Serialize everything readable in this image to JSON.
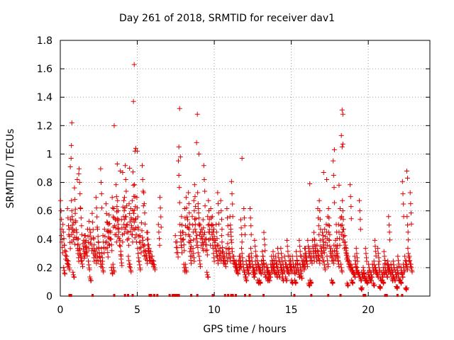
{
  "chart_data": {
    "type": "scatter",
    "title": "Day 261 of 2018, SRMTID for receiver dav1",
    "xlabel": "GPS time / hours",
    "ylabel": "SRMTID / TECUs",
    "xlim": [
      0,
      24
    ],
    "ylim": [
      0,
      1.8
    ],
    "xticks": [
      0,
      5,
      10,
      15,
      20
    ],
    "yticks": [
      0,
      0.2,
      0.4,
      0.6,
      0.8,
      1,
      1.2,
      1.4,
      1.6,
      1.8
    ],
    "ytick_labels": [
      "0",
      "0.2",
      "0.4",
      "0.6",
      "0.8",
      "1",
      "1.2",
      "1.4",
      "1.6",
      "1.8"
    ],
    "grid": true,
    "marker": "+",
    "color": "#e00000",
    "series": [
      {
        "name": "SRMTID",
        "x": [
          0.1,
          0.2,
          0.3,
          0.4,
          0.5,
          0.6,
          0.7,
          0.8,
          0.9,
          1.0,
          1.1,
          1.2,
          1.3,
          1.4,
          1.5,
          1.6,
          1.7,
          1.8,
          1.9,
          2.0,
          2.1,
          2.2,
          2.3,
          2.4,
          2.5,
          2.6,
          2.7,
          2.8,
          2.9,
          3.0,
          3.1,
          3.2,
          3.3,
          3.4,
          3.5,
          3.6,
          3.7,
          3.8,
          3.9,
          4.0,
          4.1,
          4.2,
          4.3,
          4.4,
          4.5,
          4.6,
          4.7,
          4.8,
          4.9,
          5.0,
          5.1,
          5.2,
          5.3,
          5.4,
          5.5,
          5.6,
          5.7,
          5.8,
          5.9,
          6.0,
          6.1,
          6.4,
          6.5,
          7.5,
          7.6,
          7.7,
          7.8,
          7.9,
          8.0,
          8.1,
          8.2,
          8.3,
          8.4,
          8.5,
          8.6,
          8.7,
          8.8,
          8.9,
          9.0,
          9.1,
          9.2,
          9.3,
          9.4,
          9.5,
          9.6,
          9.7,
          9.8,
          9.9,
          10.0,
          10.1,
          10.2,
          10.3,
          10.4,
          10.5,
          10.6,
          10.7,
          10.8,
          10.9,
          11.0,
          11.1,
          11.2,
          11.3,
          11.4,
          11.5,
          11.6,
          11.7,
          11.8,
          11.9,
          12.0,
          12.1,
          12.2,
          12.3,
          12.4,
          12.5,
          12.6,
          12.7,
          12.8,
          12.9,
          13.0,
          13.1,
          13.2,
          13.3,
          13.4,
          13.5,
          13.6,
          13.7,
          13.8,
          13.9,
          14.0,
          14.1,
          14.2,
          14.3,
          14.4,
          14.5,
          14.6,
          14.7,
          14.8,
          14.9,
          15.0,
          15.1,
          15.2,
          15.3,
          15.4,
          15.5,
          15.6,
          15.7,
          15.8,
          15.9,
          16.0,
          16.1,
          16.2,
          16.3,
          16.4,
          16.5,
          16.6,
          16.7,
          16.8,
          16.9,
          17.0,
          17.1,
          17.2,
          17.3,
          17.4,
          17.5,
          17.6,
          17.7,
          17.8,
          17.9,
          18.0,
          18.1,
          18.2,
          18.3,
          18.4,
          18.5,
          18.6,
          18.7,
          18.8,
          18.9,
          19.0,
          19.1,
          19.2,
          19.3,
          19.4,
          19.5,
          19.6,
          19.7,
          19.8,
          19.9,
          20.0,
          20.1,
          20.2,
          20.3,
          20.4,
          20.5,
          20.6,
          20.7,
          20.8,
          20.9,
          21.0,
          21.1,
          21.2,
          21.3,
          21.4,
          21.5,
          21.6,
          21.7,
          21.8,
          21.9,
          22.0,
          22.1,
          22.2,
          22.3,
          22.4,
          22.5,
          22.6,
          22.7,
          22.8,
          0.25,
          0.55,
          0.75,
          0.95,
          1.15,
          1.35,
          1.65,
          1.85,
          2.15,
          2.45,
          2.75,
          3.05,
          3.35,
          3.65,
          3.95,
          4.25,
          4.55,
          4.85,
          5.15,
          5.45,
          5.75,
          7.85,
          8.15,
          8.45,
          8.75,
          9.05,
          9.35,
          9.65,
          9.95,
          10.25,
          10.55,
          10.85,
          11.15,
          11.45,
          11.75,
          12.05,
          12.35,
          12.65,
          12.95,
          13.25,
          13.55,
          13.85,
          14.15,
          14.45,
          14.75,
          15.05,
          15.35,
          15.65,
          15.95,
          16.25,
          16.55,
          16.85,
          17.15,
          17.45,
          17.75,
          18.05,
          18.35,
          18.65,
          18.95,
          19.25,
          19.55,
          19.85,
          20.15,
          20.45,
          20.75,
          21.05,
          21.35,
          21.65,
          21.95,
          22.25,
          22.55,
          0.05,
          0.45,
          0.85,
          1.25,
          1.55,
          1.95,
          2.35,
          2.65,
          3.15,
          3.45,
          3.75,
          4.15,
          4.45,
          4.65,
          4.75,
          5.05,
          5.35,
          5.65,
          8.05,
          8.35,
          8.65,
          8.95,
          9.25,
          9.55,
          9.85,
          10.15,
          10.45,
          11.05,
          11.65,
          11.95,
          12.25,
          12.55,
          12.85,
          13.15,
          13.45,
          13.75,
          14.05,
          14.35,
          14.65,
          14.95,
          15.25,
          15.55,
          15.85,
          16.15,
          16.45,
          16.75,
          17.05,
          17.35,
          17.65,
          17.95,
          18.25,
          18.55,
          18.85,
          19.15,
          19.45,
          19.75,
          20.05,
          20.35,
          20.65,
          20.95,
          21.25,
          21.55,
          21.85,
          22.15,
          22.45,
          22.75
        ],
        "y": [
          0.38,
          0.45,
          0.32,
          0.28,
          0.55,
          0.42,
          0.48,
          0.5,
          0.46,
          0.52,
          0.4,
          0.36,
          0.3,
          0.25,
          0.33,
          0.38,
          0.35,
          0.42,
          0.47,
          0.4,
          0.52,
          0.36,
          0.28,
          0.3,
          0.34,
          0.25,
          0.3,
          0.38,
          0.42,
          0.58,
          0.46,
          0.51,
          0.4,
          0.62,
          0.55,
          0.48,
          0.53,
          0.45,
          0.35,
          0.48,
          0.56,
          0.62,
          0.5,
          0.45,
          0.58,
          0.55,
          0.6,
          0.52,
          0.48,
          0.62,
          0.42,
          0.38,
          0.46,
          0.35,
          0.32,
          0.28,
          0.4,
          0.3,
          0.28,
          0.25,
          0.22,
          0.45,
          0.62,
          0.38,
          0.34,
          0.85,
          0.45,
          0.5,
          0.4,
          0.55,
          0.62,
          0.48,
          0.42,
          0.35,
          0.5,
          0.6,
          0.45,
          0.38,
          0.55,
          0.45,
          0.42,
          0.48,
          0.4,
          0.36,
          0.5,
          0.45,
          0.55,
          0.5,
          0.42,
          0.35,
          0.28,
          0.32,
          0.3,
          0.38,
          0.28,
          0.25,
          0.3,
          0.33,
          0.3,
          0.42,
          0.28,
          0.25,
          0.2,
          0.18,
          0.22,
          0.25,
          0.3,
          0.2,
          0.15,
          0.22,
          0.18,
          0.25,
          0.3,
          0.2,
          0.18,
          0.22,
          0.25,
          0.2,
          0.18,
          0.22,
          0.25,
          0.15,
          0.2,
          0.18,
          0.15,
          0.2,
          0.22,
          0.18,
          0.25,
          0.2,
          0.15,
          0.22,
          0.18,
          0.2,
          0.25,
          0.2,
          0.18,
          0.22,
          0.2,
          0.25,
          0.18,
          0.2,
          0.22,
          0.15,
          0.2,
          0.25,
          0.22,
          0.3,
          0.25,
          0.35,
          0.3,
          0.28,
          0.35,
          0.4,
          0.3,
          0.32,
          0.28,
          0.35,
          0.3,
          0.38,
          0.42,
          0.45,
          0.5,
          0.35,
          0.3,
          0.28,
          0.32,
          0.35,
          0.3,
          0.45,
          0.55,
          0.5,
          0.42,
          0.38,
          0.3,
          0.25,
          0.22,
          0.2,
          0.18,
          0.15,
          0.2,
          0.18,
          0.15,
          0.12,
          0.15,
          0.18,
          0.12,
          0.1,
          0.15,
          0.12,
          0.15,
          0.2,
          0.22,
          0.18,
          0.15,
          0.2,
          0.12,
          0.15,
          0.18,
          0.2,
          0.15,
          0.22,
          0.18,
          0.2,
          0.15,
          0.12,
          0.15,
          0.18,
          0.12,
          0.1,
          0.15,
          0.2,
          0.25,
          0.22,
          0.3,
          0.25,
          0.2,
          0.18,
          0.22,
          0.6,
          0.68,
          0.3,
          0.55,
          0.38,
          0.22,
          0.3,
          0.42,
          0.2,
          0.34,
          0.18,
          0.7,
          0.26,
          0.82,
          0.2,
          0.7,
          0.22,
          0.65,
          0.3,
          0.38,
          0.2,
          0.28,
          0.7,
          0.25,
          0.82,
          0.6,
          0.3,
          0.65,
          0.28,
          0.55,
          0.72,
          0.22,
          0.48,
          0.12,
          0.55,
          0.35,
          0.1,
          0.4,
          0.12,
          0.28,
          0.3,
          0.12,
          0.35,
          0.1,
          0.28,
          0.14,
          0.3,
          0.1,
          0.35,
          0.6,
          0.22,
          0.55,
          0.85,
          0.25,
          0.6,
          0.08,
          0.1,
          0.3,
          0.05,
          0.3,
          0.12,
          0.35,
          0.06,
          0.28,
          0.5,
          0.22,
          0.25,
          0.72,
          0.5,
          0.6,
          0.25,
          0.15,
          0.8,
          0.35,
          0.12,
          0.62,
          0.8,
          0.45,
          0.2,
          0.6,
          0.6,
          0.25,
          0.48,
          0.78,
          0.3,
          0.82,
          0.4,
          0.2,
          0.65,
          0.3,
          0.65,
          0.4,
          0.15,
          0.45,
          0.45,
          0.6,
          0.5,
          0.25,
          0.55,
          0.25,
          0.15,
          0.1,
          0.28,
          0.12,
          0.25,
          0.15,
          0.3,
          0.12,
          0.25,
          0.1,
          0.35,
          0.25,
          0.08,
          0.3,
          0.55,
          0.4,
          0.25,
          0.1,
          0.45,
          0.2,
          0.32,
          0.7,
          0.25,
          0.6,
          0.14,
          0.2,
          0.08,
          0.3,
          0.1,
          0.2,
          0.12,
          0.06,
          0.18,
          0.05,
          0.65
        ]
      }
    ],
    "outliers": {
      "x": [
        0.75,
        0.72,
        0.65,
        1.2,
        3.5,
        4.8,
        4.75,
        4.9,
        4.85,
        7.75,
        7.8,
        7.7,
        8.9,
        9.0,
        8.85,
        11.8,
        18.3,
        18.35,
        18.25,
        18.3,
        18.35,
        17.8,
        22.5,
        22.55,
        5.0,
        4.5,
        0.7,
        1.1,
        3.7,
        3.9,
        4.05,
        16.2,
        17.1,
        17.3,
        18.1
      ],
      "y": [
        1.22,
        1.06,
        0.91,
        0.86,
        1.2,
        1.63,
        1.37,
        1.04,
        1.02,
        1.32,
        0.98,
        1.05,
        1.28,
        1.0,
        1.08,
        0.97,
        1.31,
        1.28,
        1.13,
        1.05,
        1.07,
        1.03,
        0.88,
        0.83,
        1.02,
        0.9,
        0.97,
        0.82,
        0.93,
        0.88,
        0.87,
        0.79,
        0.87,
        0.82,
        0.78
      ]
    },
    "data_gaps_x": [
      0.6,
      0.7,
      2.1,
      3.5,
      4.2,
      4.4,
      4.7,
      5.8,
      5.9,
      6.1,
      6.3,
      7.1,
      7.3,
      7.4,
      7.5,
      7.6,
      7.7,
      8.5,
      8.9,
      9.9,
      10.7,
      10.9,
      11.1,
      11.2,
      11.4,
      12.0,
      12.3,
      13.2,
      15.2,
      16.3,
      17.4,
      18.2,
      19.7,
      19.8,
      21.1,
      21.2,
      21.9,
      22.2
    ]
  }
}
